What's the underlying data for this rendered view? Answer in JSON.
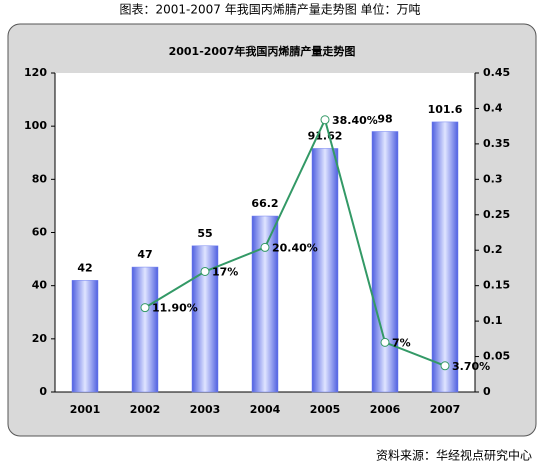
{
  "caption": "图表：2001-2007 年我国丙烯腈产量走势图 单位：万吨",
  "source": "资料来源：华经视点研究中心",
  "chart_data": {
    "type": "bar",
    "title": "2001-2007年我国丙烯腈产量走势图",
    "categories": [
      "2001",
      "2002",
      "2003",
      "2004",
      "2005",
      "2006",
      "2007"
    ],
    "series": [
      {
        "type": "bar",
        "color": "#6f7ff0",
        "values": [
          42,
          47,
          55,
          66.2,
          91.62,
          98,
          101.6
        ]
      },
      {
        "type": "line",
        "axis": "y2",
        "color": "#339966",
        "values": [
          null,
          0.119,
          0.17,
          0.204,
          0.384,
          0.07,
          0.037
        ],
        "value_labels": [
          null,
          "11.90%",
          "17%",
          "20.40%",
          "38.40%",
          "7%",
          "3.70%"
        ]
      }
    ],
    "ylim": [
      0,
      120
    ],
    "yticks": [
      0,
      20,
      40,
      60,
      80,
      100,
      120
    ],
    "y2lim": [
      0,
      0.45
    ],
    "y2ticks": [
      0,
      0.05,
      0.1,
      0.15,
      0.2,
      0.25,
      0.3,
      0.35,
      0.4,
      0.45
    ]
  }
}
